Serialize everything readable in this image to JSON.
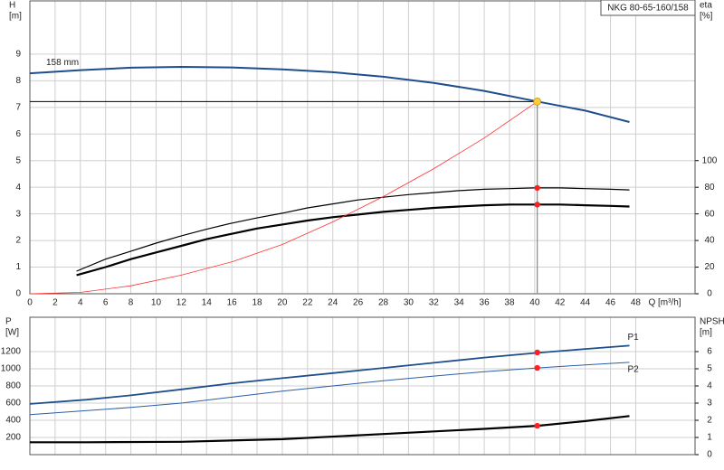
{
  "chart_data": [
    {
      "type": "line",
      "title": "NKG 80-65-160/158",
      "ylabel": [
        "H",
        "[m]"
      ],
      "y2label": [
        "eta",
        "[%]"
      ],
      "xlabel": "Q [m³/h]",
      "xlim": [
        0,
        52.7
      ],
      "xticks": [
        0,
        2,
        4,
        6,
        8,
        10,
        12,
        14,
        16,
        18,
        20,
        22,
        24,
        26,
        28,
        30,
        32,
        34,
        36,
        38,
        40,
        42,
        44,
        46,
        48
      ],
      "ylim": [
        0,
        11
      ],
      "yticks": [
        0,
        1,
        2,
        3,
        4,
        5,
        6,
        7,
        8,
        9
      ],
      "y2lim": [
        0,
        220
      ],
      "y2ticks": [
        0,
        20,
        40,
        60,
        80,
        100
      ],
      "grid": true,
      "series": [
        {
          "name": "158 mm",
          "color": "#1f4e8c",
          "width": 2,
          "x": [
            0,
            4,
            8,
            12,
            16,
            20,
            24,
            28,
            32,
            36,
            40.2,
            44,
            47.5
          ],
          "values": [
            8.28,
            8.4,
            8.49,
            8.52,
            8.5,
            8.43,
            8.32,
            8.15,
            7.92,
            7.62,
            7.22,
            6.88,
            6.45
          ]
        },
        {
          "color": "#000000",
          "width": 1.2,
          "axis": "y2",
          "x": [
            3.7,
            6,
            8,
            10,
            12,
            14,
            16,
            18,
            20,
            22,
            24,
            26,
            28,
            30,
            32,
            34,
            36,
            38,
            40,
            42,
            44,
            46,
            47.5
          ],
          "values": [
            17,
            26,
            32,
            38,
            43.5,
            48.5,
            53,
            57,
            60.5,
            64.5,
            67.5,
            70.5,
            72.5,
            74.5,
            76,
            77.5,
            78.5,
            79,
            79.5,
            79.5,
            79,
            78.5,
            78
          ]
        },
        {
          "color": "#000000",
          "width": 2.2,
          "axis": "y2",
          "x": [
            3.7,
            6,
            8,
            10,
            12,
            14,
            16,
            18,
            20,
            22,
            24,
            26,
            28,
            30,
            32,
            34,
            36,
            38,
            40,
            42,
            44,
            46,
            47.5
          ],
          "values": [
            14,
            20,
            26,
            31,
            36,
            41,
            45,
            49,
            52,
            55,
            57.5,
            59.5,
            61.5,
            63,
            64.5,
            65.5,
            66.5,
            67,
            67,
            67,
            66.5,
            66,
            65.5
          ]
        },
        {
          "color": "#ff3030",
          "width": 0.8,
          "x": [
            0,
            4,
            8,
            12,
            16,
            20,
            24,
            28,
            32,
            36,
            40.2
          ],
          "values": [
            0,
            0.05,
            0.3,
            0.7,
            1.2,
            1.85,
            2.7,
            3.65,
            4.7,
            5.85,
            7.22
          ]
        }
      ],
      "duty_point": {
        "x": 40.2,
        "y": 7.22,
        "color": "#ffcc33"
      },
      "markers": [
        {
          "x": 40.2,
          "value": 79.5,
          "axis": "y2",
          "color": "#ff2020"
        },
        {
          "x": 40.2,
          "value": 67,
          "axis": "y2",
          "color": "#ff2020"
        }
      ]
    },
    {
      "type": "line",
      "ylabel": [
        "P",
        "[W]"
      ],
      "y2label": [
        "NPSH",
        "[m]"
      ],
      "xlim": [
        0,
        52.7
      ],
      "ylim": [
        0,
        1600
      ],
      "yticks": [
        200,
        400,
        600,
        800,
        1000,
        1200
      ],
      "y2lim": [
        0,
        8
      ],
      "y2ticks": [
        0,
        1,
        2,
        3,
        4,
        5,
        6
      ],
      "grid": true,
      "series": [
        {
          "name": "P1",
          "color": "#1f4e8c",
          "width": 1.8,
          "x": [
            0,
            4.5,
            8,
            12,
            16,
            20,
            24,
            28,
            32,
            36,
            40.2,
            44,
            47.5
          ],
          "values": [
            590,
            640,
            690,
            760,
            830,
            890,
            950,
            1010,
            1070,
            1130,
            1185,
            1230,
            1270
          ]
        },
        {
          "name": "P2",
          "color": "#2a5ea8",
          "width": 1,
          "x": [
            0,
            8,
            12,
            16,
            20,
            24,
            28,
            32,
            36,
            40.2,
            44,
            47.5
          ],
          "values": [
            465,
            550,
            600,
            670,
            740,
            800,
            860,
            915,
            965,
            1010,
            1045,
            1075
          ]
        },
        {
          "color": "#000000",
          "width": 2.2,
          "axis": "y2",
          "x": [
            0,
            4.5,
            12,
            20,
            28,
            36,
            40.2,
            44,
            47.5
          ],
          "values": [
            0.72,
            0.72,
            0.75,
            0.9,
            1.2,
            1.5,
            1.68,
            1.95,
            2.25
          ]
        }
      ],
      "markers": [
        {
          "x": 40.2,
          "value": 1190,
          "color": "#ff2020"
        },
        {
          "x": 40.2,
          "value": 1010,
          "color": "#ff2020"
        },
        {
          "x": 40.2,
          "value": 1.68,
          "axis": "y2",
          "color": "#ff2020"
        }
      ]
    }
  ]
}
